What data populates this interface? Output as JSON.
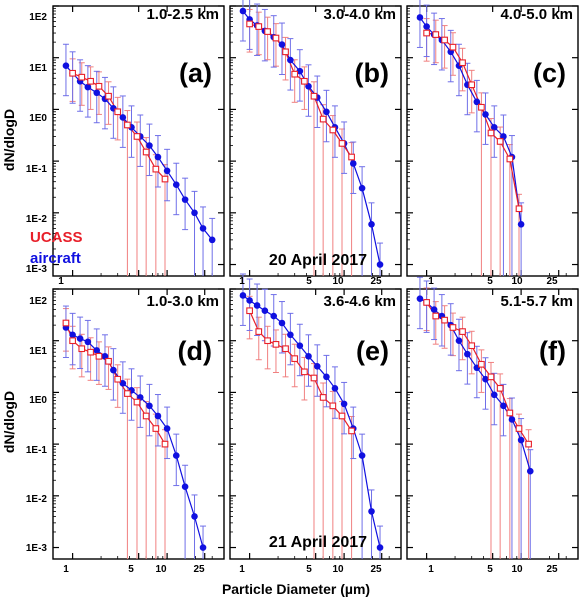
{
  "colors": {
    "ucass": "#e8202a",
    "aircraft": "#1010e0",
    "ucass_bar": "#f08080",
    "aircraft_bar": "#6f6fe8"
  },
  "chart_data": {
    "type": "scatter",
    "xlabel": "Particle Diameter (µm)",
    "ylabel": "dN/dlogD",
    "xscale": "log",
    "yscale": "log",
    "xlim": [
      0.62,
      40
    ],
    "ylim": [
      0.0006,
      100
    ],
    "x_tick_labels": [
      "1",
      "5",
      "10",
      "25"
    ],
    "y_tick_labels": [
      "1E2",
      "1E1",
      "1E0",
      "1E-1",
      "1E-2",
      "1E-3"
    ],
    "legend": [
      "UCASS",
      "aircraft"
    ],
    "dates": [
      "20 April 2017",
      "21 April 2017"
    ],
    "panels": [
      {
        "label": "(a)",
        "altitude": "1.0-2.5 km",
        "ucass": {
          "x": [
            1.0,
            1.25,
            1.55,
            1.9,
            2.4,
            3.0,
            3.8,
            4.8,
            6.0,
            7.6,
            9.5
          ],
          "y": [
            5.0,
            4.2,
            3.5,
            2.8,
            1.8,
            0.9,
            0.5,
            0.3,
            0.15,
            0.07,
            0.045
          ]
        },
        "aircraft": {
          "x": [
            0.85,
            1.0,
            1.2,
            1.45,
            1.8,
            2.2,
            2.7,
            3.4,
            4.2,
            5.2,
            6.5,
            8.0,
            10.0,
            12.5,
            15.5,
            19.5,
            24.0,
            30.0
          ],
          "y": [
            7.0,
            5.0,
            3.5,
            2.7,
            2.1,
            1.6,
            1.05,
            0.7,
            0.45,
            0.3,
            0.2,
            0.12,
            0.065,
            0.035,
            0.018,
            0.01,
            0.005,
            0.003
          ]
        }
      },
      {
        "label": "(b)",
        "altitude": "3.0-4.0 km",
        "ucass": {
          "x": [
            1.0,
            1.25,
            1.55,
            1.9,
            2.4,
            3.0,
            3.8,
            4.8,
            6.0,
            7.6,
            9.5,
            12.0
          ],
          "y": [
            45,
            40,
            32,
            24,
            13,
            4.8,
            3.5,
            1.8,
            0.65,
            0.4,
            0.22,
            0.12
          ]
        },
        "aircraft": {
          "x": [
            0.85,
            1.0,
            1.2,
            1.45,
            1.8,
            2.2,
            2.7,
            3.4,
            4.2,
            5.2,
            6.5,
            8.0,
            10.0,
            12.5,
            15.5,
            19.5,
            24.0
          ],
          "y": [
            80,
            55,
            42,
            33,
            25,
            18,
            9.0,
            5.5,
            2.8,
            1.7,
            0.9,
            0.45,
            0.22,
            0.09,
            0.03,
            0.006,
            0.001
          ]
        }
      },
      {
        "label": "(c)",
        "altitude": "4.0-5.0 km",
        "ucass": {
          "x": [
            1.0,
            1.25,
            1.55,
            1.9,
            2.4,
            3.0,
            3.8,
            4.8,
            6.0,
            7.6,
            9.5
          ],
          "y": [
            30,
            28,
            22,
            16,
            8.0,
            3.0,
            1.1,
            0.35,
            0.24,
            0.11,
            0.012
          ]
        },
        "aircraft": {
          "x": [
            0.85,
            1.0,
            1.2,
            1.45,
            1.8,
            2.2,
            2.7,
            3.4,
            4.2,
            5.2,
            6.5,
            8.0,
            10.0
          ],
          "y": [
            60,
            40,
            28,
            22,
            13,
            7.0,
            3.0,
            1.4,
            0.8,
            0.45,
            0.3,
            0.12,
            0.006
          ]
        }
      },
      {
        "label": "(d)",
        "altitude": "1.0-3.0 km",
        "ucass": {
          "x": [
            0.85,
            1.0,
            1.25,
            1.55,
            1.9,
            2.4,
            3.0,
            3.8,
            4.8,
            6.0,
            7.6,
            9.5
          ],
          "y": [
            22,
            10,
            7.0,
            6.0,
            5.0,
            4.0,
            1.8,
            0.95,
            0.65,
            0.35,
            0.2,
            0.1
          ]
        },
        "aircraft": {
          "x": [
            0.85,
            1.0,
            1.2,
            1.45,
            1.8,
            2.2,
            2.7,
            3.4,
            4.2,
            5.2,
            6.5,
            8.0,
            10.0,
            12.5,
            15.5,
            19.5,
            24.0
          ],
          "y": [
            18,
            13,
            11,
            9.5,
            6.5,
            5.0,
            2.7,
            1.5,
            1.1,
            0.8,
            0.55,
            0.35,
            0.2,
            0.06,
            0.015,
            0.004,
            0.001
          ]
        }
      },
      {
        "label": "(e)",
        "altitude": "3.6-4.6 km",
        "ucass": {
          "x": [
            1.0,
            1.25,
            1.55,
            1.9,
            2.4,
            3.0,
            3.8,
            4.8,
            6.0,
            7.6,
            9.5,
            12.0
          ],
          "y": [
            38,
            15,
            10,
            8.5,
            7.0,
            4.5,
            2.5,
            1.9,
            0.8,
            0.55,
            0.35,
            0.18
          ]
        },
        "aircraft": {
          "x": [
            0.85,
            1.0,
            1.2,
            1.45,
            1.8,
            2.2,
            2.7,
            3.4,
            4.2,
            5.2,
            6.5,
            8.0,
            10.0,
            12.5,
            15.5,
            19.5,
            24.0
          ],
          "y": [
            75,
            60,
            48,
            38,
            30,
            22,
            13,
            8.0,
            5.0,
            3.2,
            2.0,
            1.2,
            0.6,
            0.2,
            0.06,
            0.005,
            0.001
          ]
        }
      },
      {
        "label": "(f)",
        "altitude": "5.1-5.7 km",
        "ucass": {
          "x": [
            1.0,
            1.25,
            1.55,
            1.9,
            2.4,
            3.0,
            3.8,
            4.8,
            6.0,
            7.6,
            9.5,
            12.0
          ],
          "y": [
            55,
            30,
            25,
            18,
            15,
            8.0,
            3.5,
            2.0,
            1.2,
            0.4,
            0.2,
            0.1
          ]
        },
        "aircraft": {
          "x": [
            0.85,
            1.0,
            1.2,
            1.45,
            1.8,
            2.2,
            2.7,
            3.4,
            4.2,
            5.2,
            6.5,
            8.0,
            10.0,
            12.5
          ],
          "y": [
            65,
            55,
            40,
            30,
            20,
            10,
            5.5,
            3.0,
            1.8,
            0.9,
            0.55,
            0.3,
            0.12,
            0.03
          ]
        }
      }
    ]
  }
}
